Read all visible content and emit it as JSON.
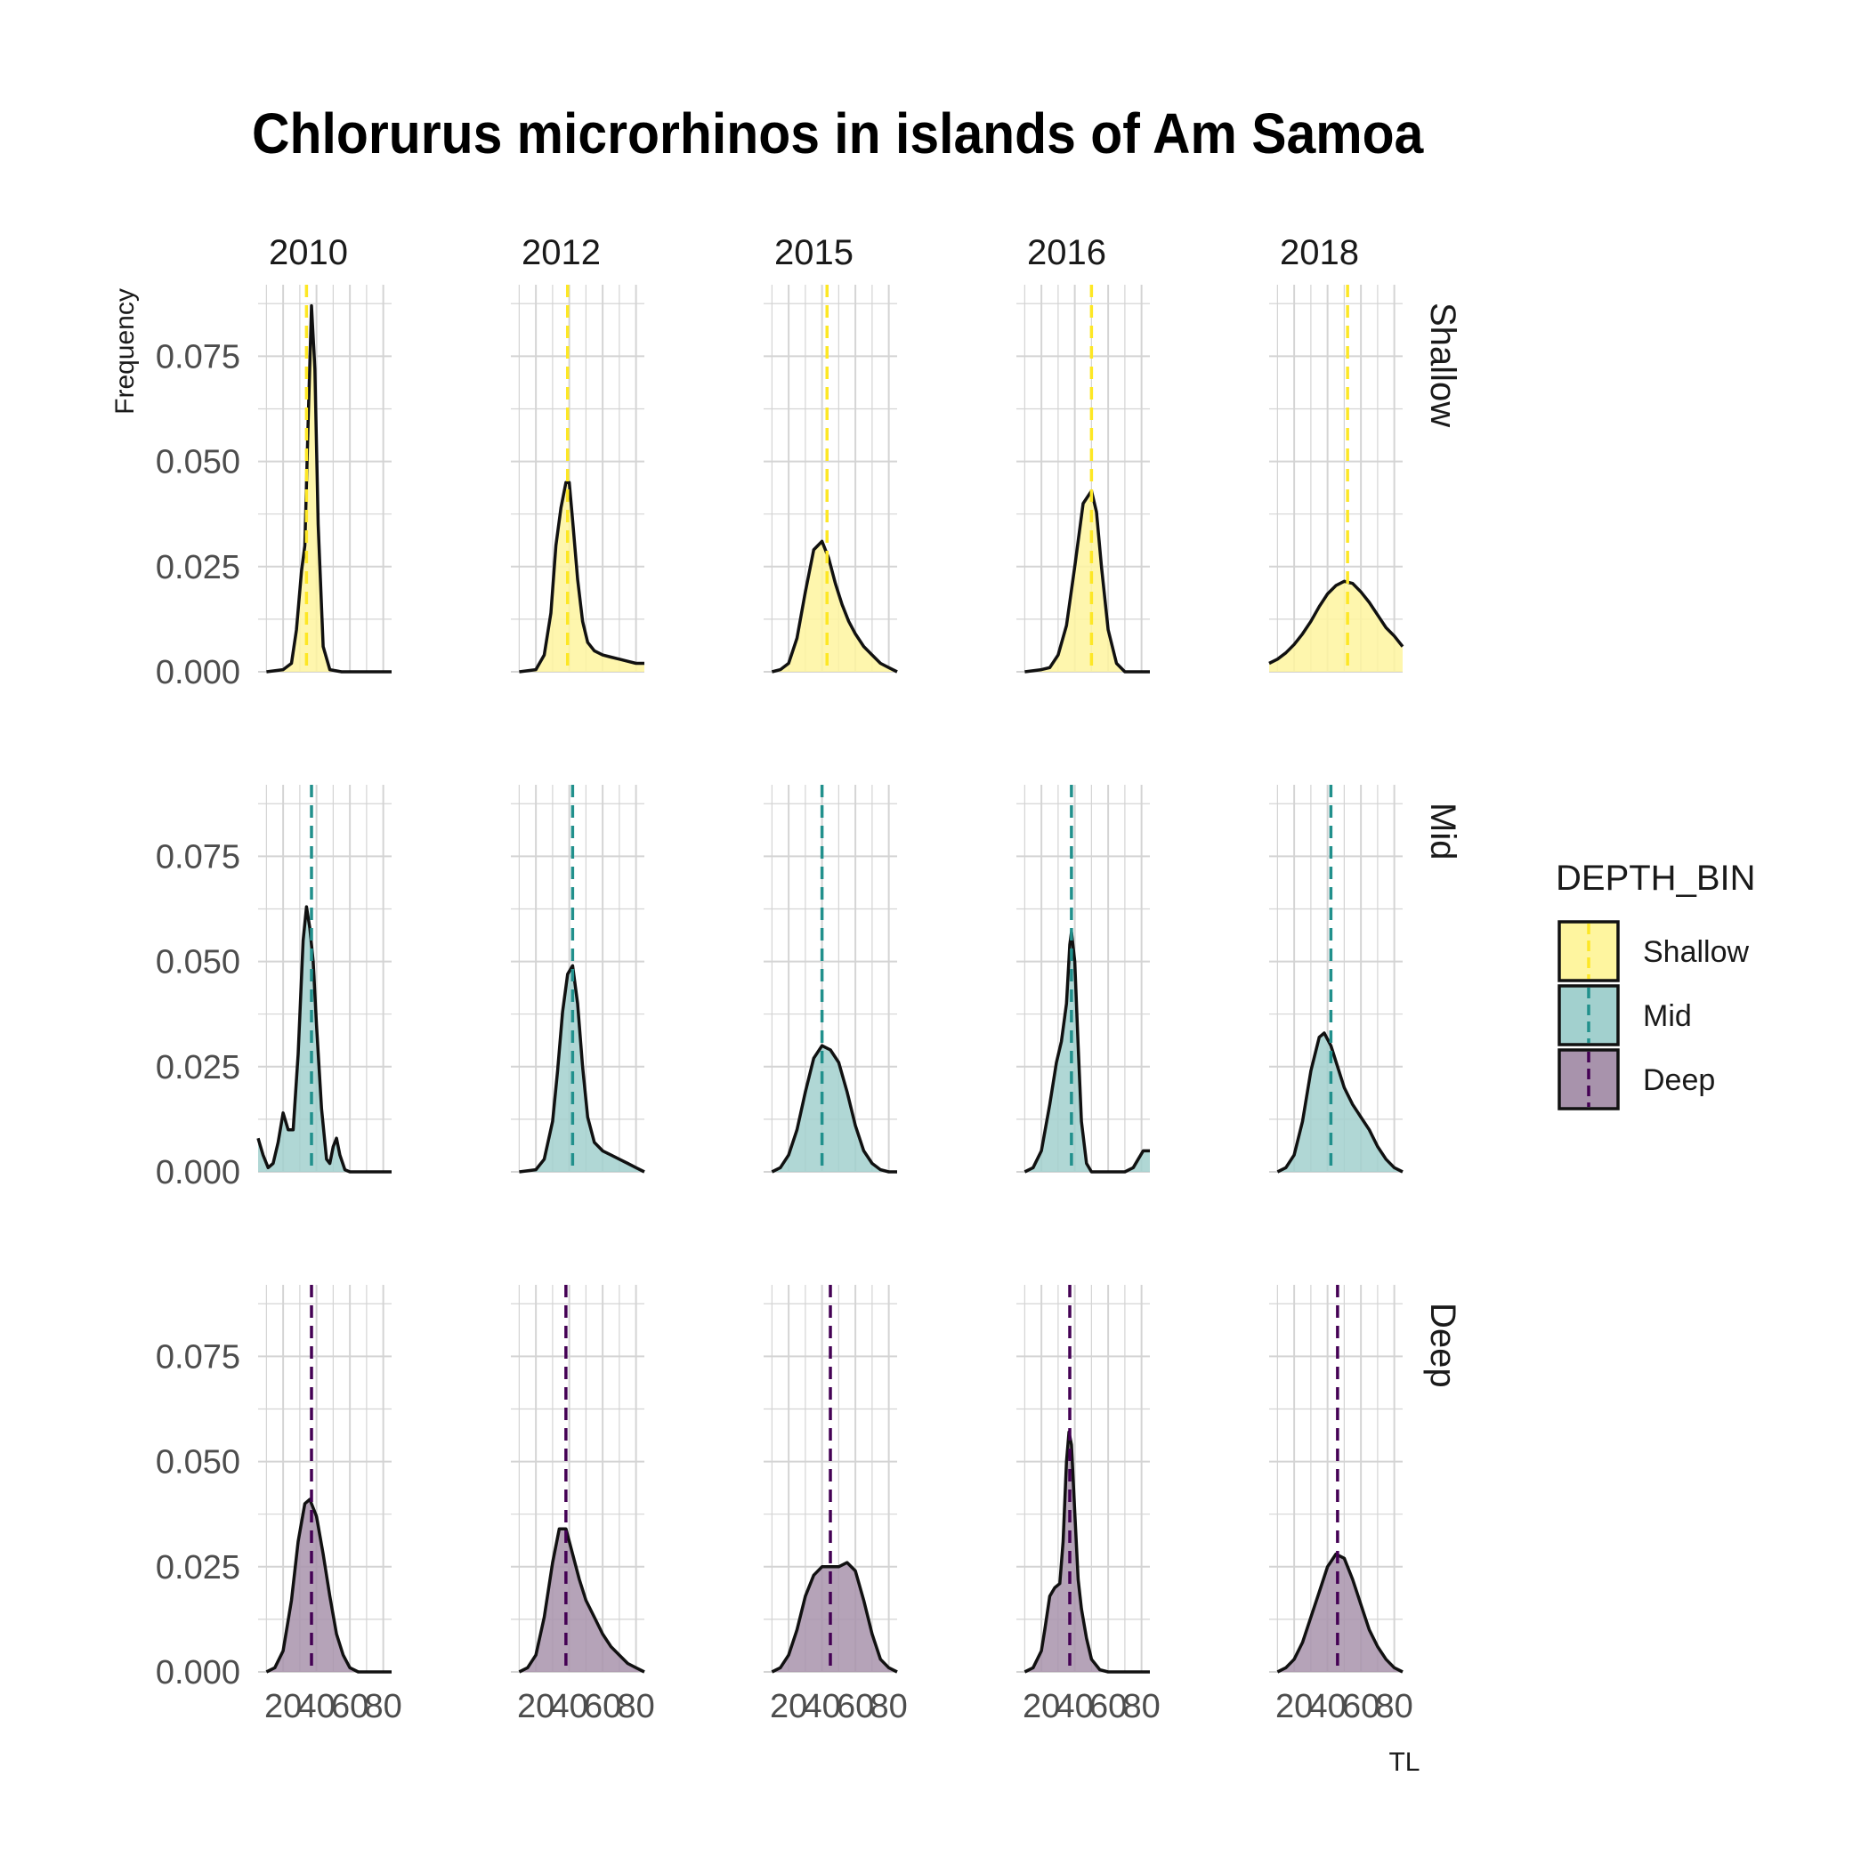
{
  "chart_data": {
    "type": "area",
    "title": "Chlorurus microrhinos in islands of Am Samoa",
    "xlabel": "TL",
    "ylabel": "Frequency",
    "columns": [
      "2010",
      "2012",
      "2015",
      "2016",
      "2018"
    ],
    "rows": [
      "Shallow",
      "Mid",
      "Deep"
    ],
    "xlim": [
      5,
      85
    ],
    "ylim": [
      0,
      0.092
    ],
    "x_ticks": [
      20,
      40,
      60,
      80
    ],
    "x_tick_labels": [
      "20",
      "40",
      "60",
      "80"
    ],
    "y_ticks": [
      0,
      0.025,
      0.05,
      0.075
    ],
    "y_tick_labels": [
      "0.000",
      "0.025",
      "0.050",
      "0.075"
    ],
    "grid": true,
    "legend": {
      "title": "DEPTH_BIN",
      "placement": "right",
      "entries": [
        "Shallow",
        "Mid",
        "Deep"
      ]
    },
    "colors": {
      "Shallow": "#FDE725",
      "Mid": "#21908C",
      "Deep": "#440154"
    },
    "fill_colors": {
      "Shallow": "#FEF59F",
      "Mid": "#A2D0CE",
      "Deep": "#A893AC"
    },
    "panels": [
      {
        "row": "Shallow",
        "col": "2010",
        "mean": 34,
        "x": [
          10,
          20,
          25,
          28,
          31,
          33,
          35,
          37,
          39,
          41,
          44,
          48,
          55,
          70,
          85
        ],
        "y": [
          0,
          0.0005,
          0.002,
          0.01,
          0.024,
          0.03,
          0.06,
          0.087,
          0.072,
          0.035,
          0.006,
          0.0005,
          0,
          0,
          0
        ]
      },
      {
        "row": "Shallow",
        "col": "2012",
        "mean": 39,
        "x": [
          10,
          20,
          25,
          29,
          32,
          35,
          38,
          40,
          42,
          45,
          48,
          51,
          55,
          60,
          65,
          70,
          75,
          80,
          85
        ],
        "y": [
          0,
          0.0005,
          0.004,
          0.014,
          0.03,
          0.039,
          0.045,
          0.045,
          0.036,
          0.022,
          0.012,
          0.007,
          0.005,
          0.004,
          0.0035,
          0.003,
          0.0025,
          0.002,
          0.002
        ]
      },
      {
        "row": "Shallow",
        "col": "2015",
        "mean": 43,
        "x": [
          10,
          15,
          20,
          25,
          30,
          35,
          40,
          44,
          48,
          52,
          56,
          60,
          65,
          70,
          75,
          80,
          85
        ],
        "y": [
          0,
          0.0005,
          0.002,
          0.008,
          0.019,
          0.029,
          0.031,
          0.027,
          0.021,
          0.016,
          0.012,
          0.009,
          0.006,
          0.004,
          0.002,
          0.001,
          0
        ]
      },
      {
        "row": "Shallow",
        "col": "2016",
        "mean": 50,
        "x": [
          10,
          20,
          25,
          30,
          35,
          40,
          45,
          50,
          53,
          56,
          60,
          65,
          70,
          85
        ],
        "y": [
          0,
          0.0005,
          0.001,
          0.004,
          0.011,
          0.025,
          0.04,
          0.043,
          0.038,
          0.025,
          0.01,
          0.002,
          0,
          0
        ]
      },
      {
        "row": "Shallow",
        "col": "2018",
        "mean": 52,
        "x": [
          5,
          10,
          15,
          20,
          25,
          30,
          35,
          40,
          45,
          50,
          55,
          60,
          65,
          70,
          75,
          80,
          85
        ],
        "y": [
          0.002,
          0.003,
          0.0045,
          0.0065,
          0.009,
          0.012,
          0.0155,
          0.0185,
          0.0205,
          0.0215,
          0.021,
          0.019,
          0.0165,
          0.0135,
          0.0105,
          0.0085,
          0.006
        ]
      },
      {
        "row": "Mid",
        "col": "2010",
        "mean": 37,
        "x": [
          5,
          8,
          11,
          14,
          17,
          20,
          23,
          26,
          29,
          32,
          34,
          36,
          38,
          40,
          43,
          46,
          48,
          50,
          52,
          54,
          57,
          60,
          85
        ],
        "y": [
          0.008,
          0.004,
          0.001,
          0.002,
          0.007,
          0.014,
          0.01,
          0.01,
          0.028,
          0.055,
          0.063,
          0.058,
          0.05,
          0.035,
          0.015,
          0.003,
          0.002,
          0.006,
          0.008,
          0.004,
          0.0005,
          0,
          0
        ]
      },
      {
        "row": "Mid",
        "col": "2012",
        "mean": 42,
        "x": [
          10,
          20,
          25,
          30,
          33,
          36,
          39,
          42,
          45,
          48,
          51,
          55,
          60,
          65,
          70,
          75,
          80,
          85
        ],
        "y": [
          0,
          0.0005,
          0.003,
          0.012,
          0.024,
          0.038,
          0.047,
          0.049,
          0.04,
          0.025,
          0.013,
          0.007,
          0.005,
          0.004,
          0.003,
          0.002,
          0.001,
          0
        ]
      },
      {
        "row": "Mid",
        "col": "2015",
        "mean": 40,
        "x": [
          10,
          15,
          20,
          25,
          30,
          35,
          40,
          45,
          50,
          55,
          60,
          65,
          70,
          75,
          80,
          85
        ],
        "y": [
          0,
          0.001,
          0.004,
          0.01,
          0.019,
          0.027,
          0.03,
          0.029,
          0.026,
          0.019,
          0.011,
          0.005,
          0.002,
          0.0005,
          0,
          0
        ]
      },
      {
        "row": "Mid",
        "col": "2016",
        "mean": 38,
        "x": [
          10,
          15,
          20,
          25,
          29,
          32,
          35,
          37,
          38,
          40,
          42,
          44,
          47,
          50,
          55,
          60,
          65,
          70,
          75,
          78,
          81,
          84,
          85
        ],
        "y": [
          0,
          0.001,
          0.005,
          0.016,
          0.026,
          0.031,
          0.04,
          0.054,
          0.057,
          0.05,
          0.03,
          0.012,
          0.002,
          0,
          0,
          0,
          0,
          0,
          0.001,
          0.003,
          0.005,
          0.005,
          0.005
        ]
      },
      {
        "row": "Mid",
        "col": "2018",
        "mean": 42,
        "x": [
          10,
          15,
          20,
          25,
          30,
          35,
          38,
          42,
          46,
          50,
          55,
          60,
          65,
          70,
          75,
          80,
          85
        ],
        "y": [
          0,
          0.001,
          0.004,
          0.012,
          0.024,
          0.032,
          0.033,
          0.03,
          0.025,
          0.02,
          0.016,
          0.013,
          0.01,
          0.006,
          0.003,
          0.001,
          0
        ]
      },
      {
        "row": "Deep",
        "col": "2010",
        "mean": 37,
        "x": [
          10,
          15,
          20,
          25,
          29,
          33,
          36,
          40,
          44,
          48,
          52,
          56,
          60,
          65,
          70,
          85
        ],
        "y": [
          0,
          0.001,
          0.005,
          0.017,
          0.031,
          0.04,
          0.041,
          0.037,
          0.028,
          0.018,
          0.009,
          0.004,
          0.001,
          0,
          0,
          0
        ]
      },
      {
        "row": "Deep",
        "col": "2012",
        "mean": 38,
        "x": [
          10,
          15,
          20,
          25,
          30,
          34,
          38,
          42,
          46,
          50,
          55,
          60,
          65,
          70,
          75,
          80,
          85
        ],
        "y": [
          0,
          0.001,
          0.004,
          0.013,
          0.026,
          0.034,
          0.034,
          0.028,
          0.022,
          0.017,
          0.013,
          0.009,
          0.006,
          0.004,
          0.002,
          0.001,
          0
        ]
      },
      {
        "row": "Deep",
        "col": "2015",
        "mean": 45,
        "x": [
          10,
          15,
          20,
          25,
          30,
          35,
          40,
          45,
          50,
          55,
          60,
          65,
          70,
          75,
          80,
          85
        ],
        "y": [
          0,
          0.001,
          0.004,
          0.01,
          0.018,
          0.023,
          0.025,
          0.025,
          0.025,
          0.026,
          0.024,
          0.017,
          0.009,
          0.003,
          0.001,
          0
        ]
      },
      {
        "row": "Deep",
        "col": "2016",
        "mean": 37,
        "x": [
          10,
          15,
          20,
          22,
          25,
          28,
          31,
          33,
          35,
          36.5,
          38,
          40,
          42,
          44,
          47,
          50,
          55,
          60,
          85
        ],
        "y": [
          0,
          0.001,
          0.005,
          0.01,
          0.018,
          0.02,
          0.021,
          0.031,
          0.05,
          0.057,
          0.054,
          0.038,
          0.022,
          0.015,
          0.008,
          0.003,
          0.0005,
          0,
          0
        ]
      },
      {
        "row": "Deep",
        "col": "2018",
        "mean": 46,
        "x": [
          10,
          15,
          20,
          25,
          30,
          35,
          40,
          45,
          50,
          55,
          60,
          65,
          70,
          75,
          80,
          85
        ],
        "y": [
          0,
          0.001,
          0.003,
          0.007,
          0.013,
          0.019,
          0.025,
          0.028,
          0.027,
          0.022,
          0.016,
          0.01,
          0.006,
          0.003,
          0.001,
          0
        ]
      }
    ]
  }
}
